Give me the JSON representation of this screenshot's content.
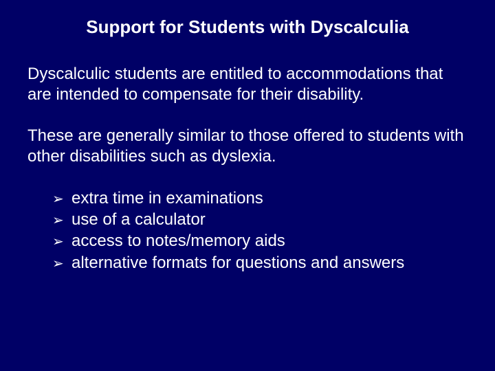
{
  "background_color": "#000066",
  "text_color": "#ffffff",
  "font_family": "Arial, Helvetica, sans-serif",
  "title": "Support for Students with Dyscalculia",
  "title_fontsize": 26,
  "title_fontweight": "bold",
  "paragraphs": [
    "Dyscalculic students are entitled to accommodations that are intended to compensate for their disability.",
    "These are generally similar to those offered to students with other disabilities such as dyslexia."
  ],
  "body_fontsize": 24,
  "bullet_glyph": "➢",
  "bullets": [
    "extra time in examinations",
    "use of a calculator",
    "access to notes/memory aids",
    "alternative formats for questions and answers"
  ]
}
